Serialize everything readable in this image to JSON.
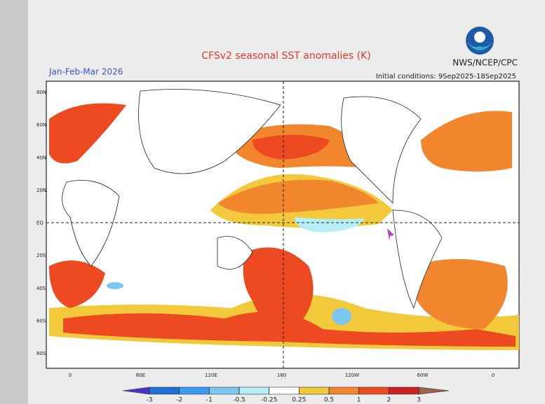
{
  "title": "CFSv2 seasonal SST anomalies (K)",
  "period": "Jan-Feb-Mar 2026",
  "initial_conditions": "Initial conditions: 9Sep2025-18Sep2025",
  "agency": "NWS/NCEP/CPC",
  "map": {
    "lat_labels": [
      "80N",
      "60N",
      "40N",
      "20N",
      "EQ",
      "20S",
      "40S",
      "60S",
      "80S"
    ],
    "lon_labels": [
      "0",
      "60E",
      "120E",
      "180",
      "120W",
      "60W",
      "0"
    ]
  },
  "colorbar": {
    "ticks": [
      -3,
      -2,
      -1,
      -0.5,
      -0.25,
      0.25,
      0.5,
      1,
      2,
      3
    ],
    "colors": [
      "#4a34c8",
      "#1f6fd6",
      "#3a9cf0",
      "#7cc6f2",
      "#b6eef6",
      "#ffffff",
      "#f2c93a",
      "#f2862c",
      "#ee4a22",
      "#cc2020",
      "#a0604a"
    ]
  }
}
